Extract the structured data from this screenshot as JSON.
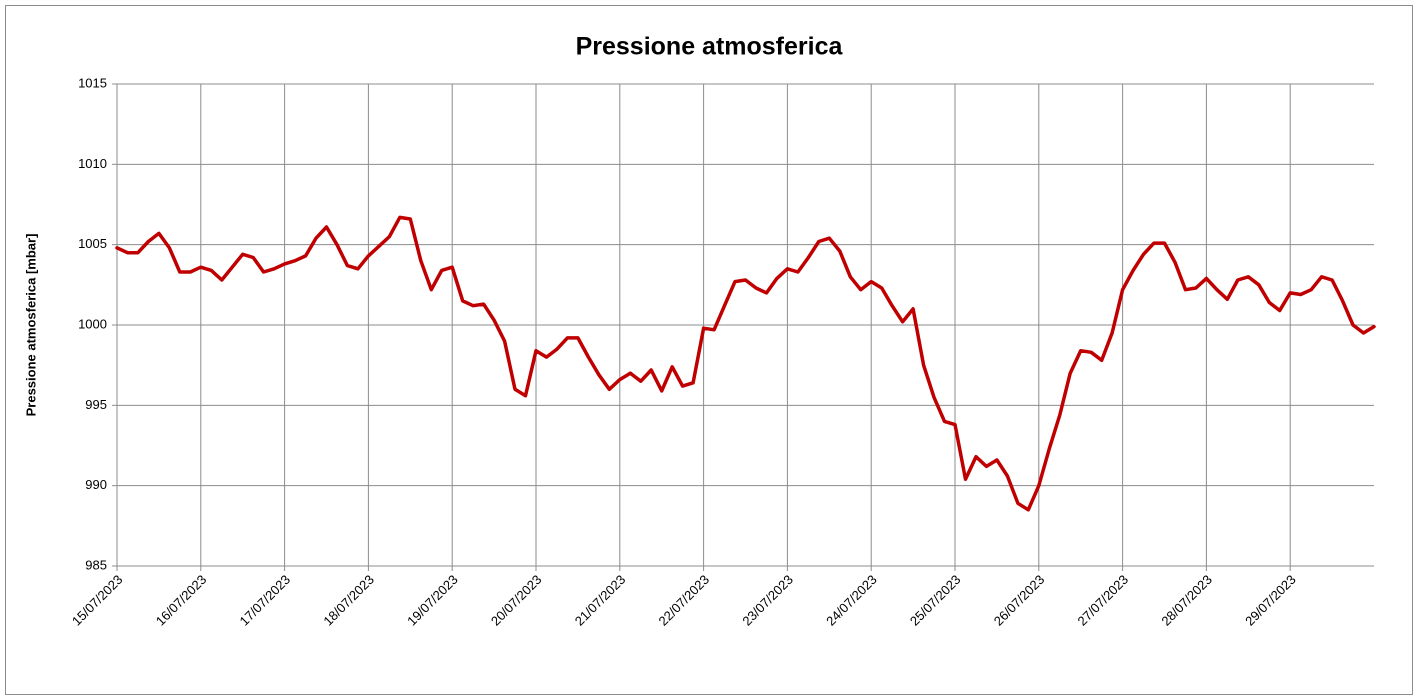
{
  "chart_data": {
    "type": "line",
    "title": "Pressione atmosferica",
    "y_label": "Pressione atmosferica [mbar]",
    "color": "#c00000",
    "grid": true,
    "ylim": [
      985,
      1015
    ],
    "yticks": [
      985,
      990,
      995,
      1000,
      1005,
      1010,
      1015
    ],
    "categories": [
      "15/07/2023",
      null,
      null,
      null,
      null,
      null,
      null,
      null,
      "16/07/2023",
      null,
      null,
      null,
      null,
      null,
      null,
      null,
      "17/07/2023",
      null,
      null,
      null,
      null,
      null,
      null,
      null,
      "18/07/2023",
      null,
      null,
      null,
      null,
      null,
      null,
      null,
      "19/07/2023",
      null,
      null,
      null,
      null,
      null,
      null,
      null,
      "20/07/2023",
      null,
      null,
      null,
      null,
      null,
      null,
      null,
      "21/07/2023",
      null,
      null,
      null,
      null,
      null,
      null,
      null,
      "22/07/2023",
      null,
      null,
      null,
      null,
      null,
      null,
      null,
      "23/07/2023",
      null,
      null,
      null,
      null,
      null,
      null,
      null,
      "24/07/2023",
      null,
      null,
      null,
      null,
      null,
      null,
      null,
      "25/07/2023",
      null,
      null,
      null,
      null,
      null,
      null,
      null,
      "26/07/2023",
      null,
      null,
      null,
      null,
      null,
      null,
      null,
      "27/07/2023",
      null,
      null,
      null,
      null,
      null,
      null,
      null,
      "28/07/2023",
      null,
      null,
      null,
      null,
      null,
      null,
      null,
      "29/07/2023",
      null,
      null,
      null,
      null,
      null,
      null,
      null,
      null
    ],
    "values": [
      1004.8,
      1004.5,
      1004.5,
      1005.2,
      1005.7,
      1004.8,
      1003.3,
      1003.3,
      1003.6,
      1003.4,
      1002.8,
      1003.6,
      1004.4,
      1004.2,
      1003.3,
      1003.5,
      1003.8,
      1004.0,
      1004.3,
      1005.4,
      1006.1,
      1005.0,
      1003.7,
      1003.5,
      1004.3,
      1004.9,
      1005.5,
      1006.7,
      1006.6,
      1004.0,
      1002.2,
      1003.4,
      1003.6,
      1001.5,
      1001.2,
      1001.3,
      1000.3,
      999.0,
      996.0,
      995.6,
      998.4,
      998.0,
      998.5,
      999.2,
      999.2,
      998.0,
      996.9,
      996.0,
      996.6,
      997.0,
      996.5,
      997.2,
      995.9,
      997.4,
      996.2,
      996.4,
      999.8,
      999.7,
      1001.2,
      1002.7,
      1002.8,
      1002.3,
      1002.0,
      1002.9,
      1003.5,
      1003.3,
      1004.2,
      1005.2,
      1005.4,
      1004.6,
      1003.0,
      1002.2,
      1002.7,
      1002.3,
      1001.2,
      1000.2,
      1001.0,
      997.5,
      995.5,
      994.0,
      993.8,
      990.4,
      991.8,
      991.2,
      991.6,
      990.6,
      988.9,
      988.5,
      990.0,
      992.3,
      994.4,
      997.0,
      998.4,
      998.3,
      997.8,
      999.5,
      1002.2,
      1003.4,
      1004.4,
      1005.1,
      1005.1,
      1003.9,
      1002.2,
      1002.3,
      1002.9,
      1002.2,
      1001.6,
      1002.8,
      1003.0,
      1002.5,
      1001.4,
      1000.9,
      1002.0,
      1001.9,
      1002.2,
      1003.0,
      1002.8,
      1001.5,
      1000.0,
      999.5,
      999.9
    ]
  }
}
